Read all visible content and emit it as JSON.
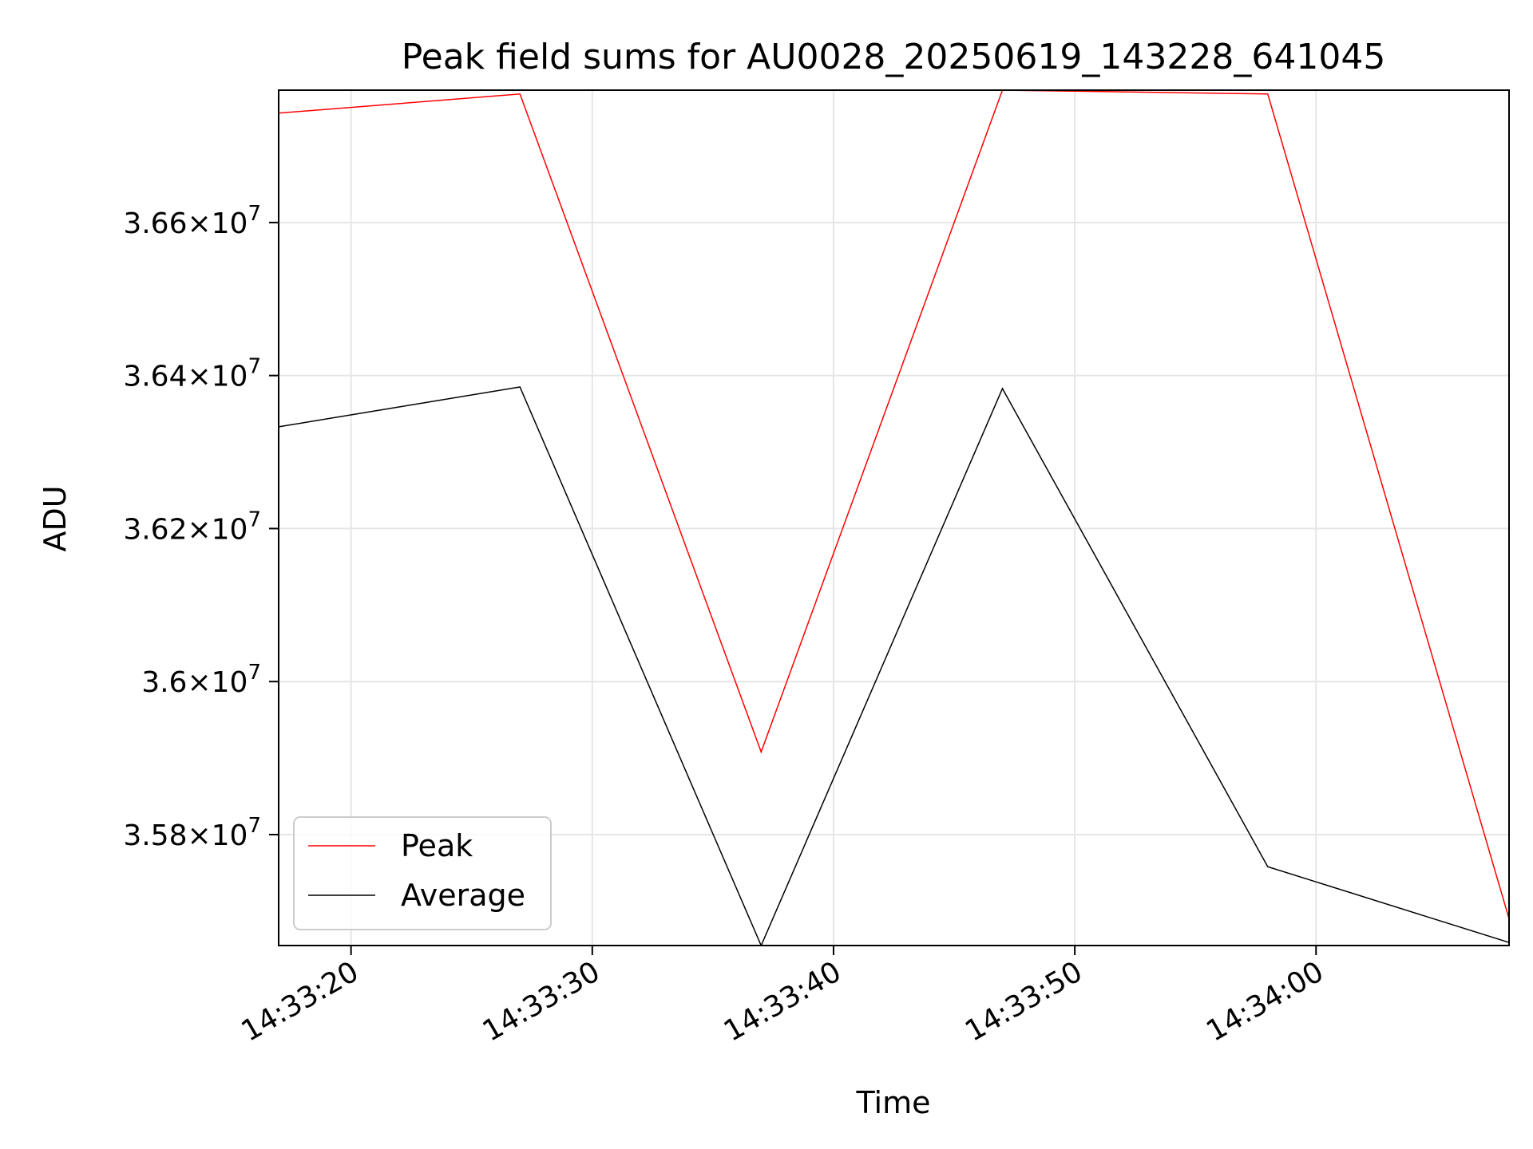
{
  "chart_data": {
    "type": "line",
    "title": "Peak field sums for AU0028_20250619_143228_641045",
    "xlabel": "Time",
    "ylabel": "ADU",
    "x": [
      "14:33:17",
      "14:33:27",
      "14:33:37",
      "14:33:47",
      "14:33:58",
      "14:34:08"
    ],
    "xlim": [
      "14:33:17",
      "14:34:08"
    ],
    "ylim": [
      35655000,
      36773000
    ],
    "xticks": [
      "14:33:20",
      "14:33:30",
      "14:33:40",
      "14:33:50",
      "14:34:00"
    ],
    "yticks": [
      {
        "value": 35800000,
        "mantissa": "3.58",
        "exponent": "7"
      },
      {
        "value": 36000000,
        "mantissa": "3.6",
        "exponent": "7"
      },
      {
        "value": 36200000,
        "mantissa": "3.62",
        "exponent": "7"
      },
      {
        "value": 36400000,
        "mantissa": "3.64",
        "exponent": "7"
      },
      {
        "value": 36600000,
        "mantissa": "3.66",
        "exponent": "7"
      }
    ],
    "grid": true,
    "legend": "lower-left",
    "series": [
      {
        "name": "Peak",
        "color": "#ff0000",
        "values": [
          36743000,
          36768000,
          35908000,
          36773000,
          36768000,
          35690000
        ]
      },
      {
        "name": "Average",
        "color": "#000000",
        "values": [
          36333000,
          36385000,
          35655000,
          36383000,
          35758000,
          35659000
        ]
      }
    ]
  }
}
